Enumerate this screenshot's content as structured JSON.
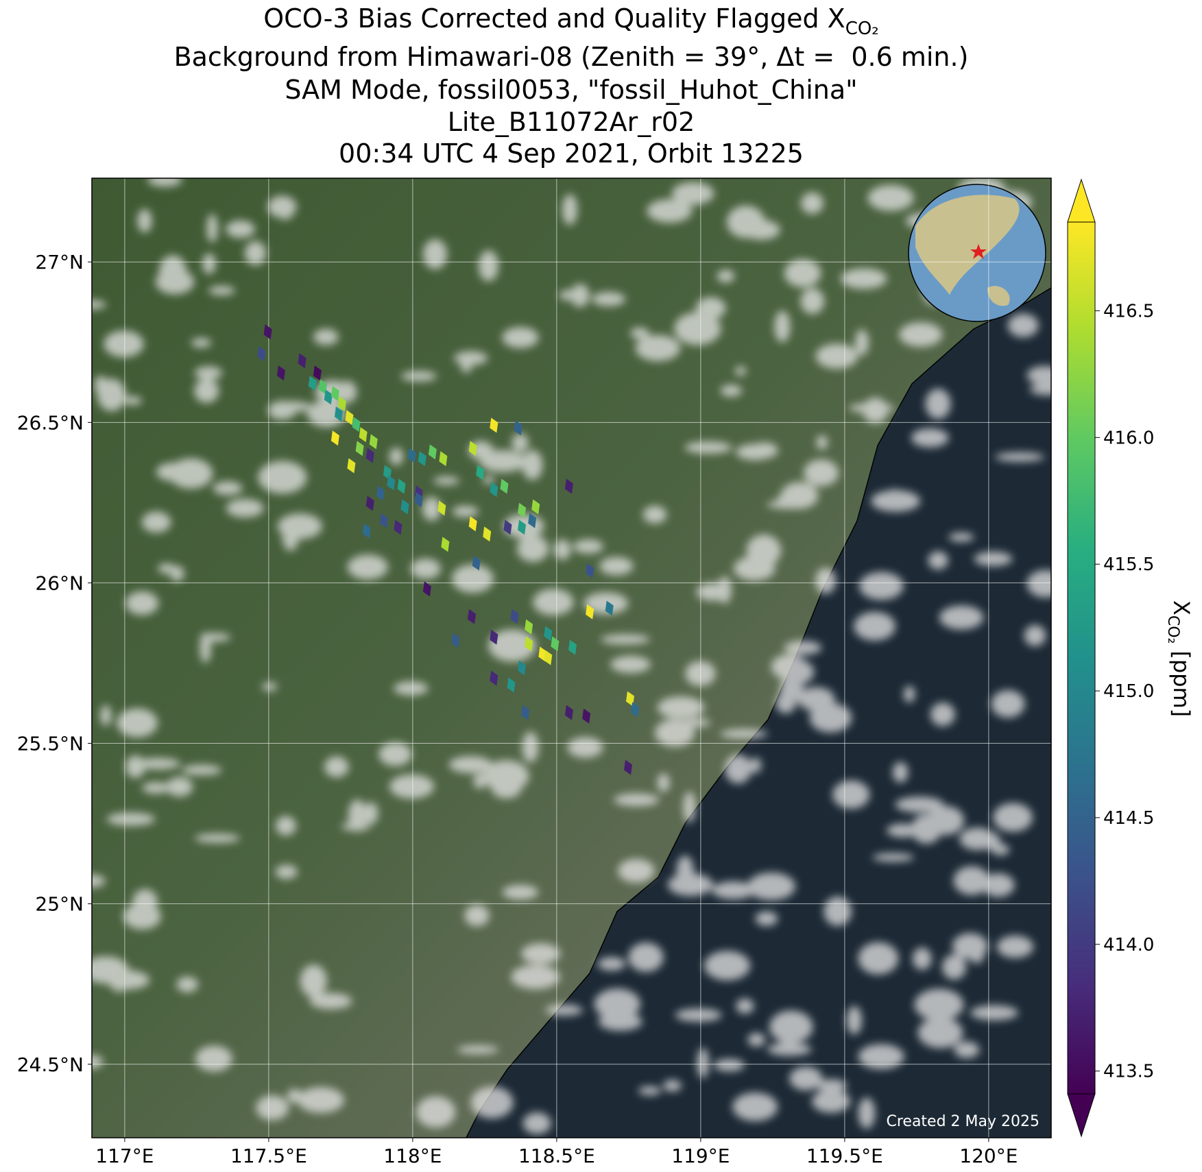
{
  "chart_data": {
    "type": "scatter",
    "title": [
      "OCO-3 Bias Corrected and Quality Flagged X",
      "Background from Himawari-08 (Zenith = 39°, Δt =  0.6 min.)",
      "SAM Mode, fossil0053, \"fossil_Huhot_China\"",
      "Lite_B11072Ar_r02",
      "00:34 UTC 4 Sep 2021, Orbit 13225"
    ],
    "title_subscript": "CO₂",
    "xlim": [
      116.886,
      120.217
    ],
    "ylim": [
      24.271,
      27.261
    ],
    "xticks": [
      {
        "value": 117,
        "label": "117°E"
      },
      {
        "value": 117.5,
        "label": "117.5°E"
      },
      {
        "value": 118,
        "label": "118°E"
      },
      {
        "value": 118.5,
        "label": "118.5°E"
      },
      {
        "value": 119,
        "label": "119°E"
      },
      {
        "value": 119.5,
        "label": "119.5°E"
      },
      {
        "value": 120,
        "label": "120°E"
      }
    ],
    "yticks": [
      {
        "value": 24.5,
        "label": "24.5°N"
      },
      {
        "value": 25,
        "label": "25°N"
      },
      {
        "value": 25.5,
        "label": "25.5°N"
      },
      {
        "value": 26,
        "label": "26°N"
      },
      {
        "value": 26.5,
        "label": "26.5°N"
      },
      {
        "value": 27,
        "label": "27°N"
      }
    ],
    "grid": true,
    "cmap": "viridis",
    "clim": [
      413.41,
      416.85
    ],
    "cticks": [
      413.5,
      {
        "value": 414,
        "label": "414.0"
      },
      414.5,
      {
        "value": 415,
        "label": "415.0"
      },
      415.5,
      {
        "value": 416,
        "label": "416.0"
      },
      416.5
    ],
    "colorbar_label": {
      "symbol": "X",
      "subscript": "CO₂",
      "unit": "[ppm]"
    },
    "annotation": "Created 2 May 2025",
    "x": [
      117.497,
      117.475,
      117.616,
      117.543,
      117.669,
      117.652,
      117.688,
      117.707,
      117.731,
      117.755,
      117.743,
      117.78,
      117.804,
      117.828,
      117.864,
      117.731,
      117.816,
      117.852,
      117.787,
      117.912,
      117.997,
      118.033,
      118.069,
      118.106,
      117.925,
      117.888,
      117.961,
      117.852,
      117.973,
      118.021,
      117.9,
      117.949,
      117.84,
      118.021,
      118.282,
      118.366,
      118.209,
      118.234,
      118.282,
      118.318,
      118.379,
      118.427,
      118.209,
      118.258,
      118.33,
      118.379,
      118.415,
      118.101,
      118.113,
      118.543,
      118.221,
      118.615,
      118.05,
      118.205,
      118.683,
      118.149,
      118.282,
      118.354,
      118.403,
      118.47,
      118.403,
      118.451,
      118.494,
      118.555,
      118.615,
      118.47,
      118.282,
      118.379,
      118.342,
      118.391,
      118.543,
      118.603,
      118.755,
      118.772,
      118.748
    ],
    "y": [
      26.782,
      26.714,
      26.692,
      26.654,
      26.654,
      26.622,
      26.611,
      26.579,
      26.59,
      26.558,
      26.526,
      26.515,
      26.494,
      26.462,
      26.44,
      26.451,
      26.419,
      26.397,
      26.365,
      26.344,
      26.397,
      26.387,
      26.408,
      26.387,
      26.312,
      26.28,
      26.301,
      26.248,
      26.237,
      26.28,
      26.194,
      26.173,
      26.162,
      26.259,
      26.491,
      26.483,
      26.419,
      26.344,
      26.291,
      26.301,
      26.226,
      26.237,
      26.184,
      26.152,
      26.173,
      26.173,
      26.194,
      26.233,
      26.12,
      26.301,
      26.062,
      26.038,
      25.981,
      25.895,
      25.921,
      25.821,
      25.831,
      25.895,
      25.863,
      25.842,
      25.81,
      25.778,
      25.81,
      25.799,
      25.91,
      25.767,
      25.703,
      25.735,
      25.682,
      25.596,
      25.596,
      25.585,
      25.639,
      25.605,
      25.425
    ],
    "values": [
      413.6,
      414.2,
      413.7,
      413.6,
      413.5,
      415.3,
      415.9,
      415.2,
      416.0,
      416.4,
      415.1,
      416.7,
      415.8,
      416.5,
      416.3,
      416.8,
      416.2,
      413.8,
      416.7,
      415.3,
      414.6,
      415.2,
      416.0,
      416.4,
      415.0,
      414.5,
      415.4,
      413.7,
      415.1,
      413.9,
      414.3,
      413.8,
      414.6,
      414.4,
      416.8,
      414.5,
      416.5,
      415.5,
      415.2,
      416.0,
      416.1,
      416.3,
      416.8,
      416.7,
      414.0,
      415.3,
      414.6,
      416.6,
      416.4,
      413.7,
      414.5,
      414.3,
      413.6,
      413.7,
      414.8,
      414.4,
      413.8,
      414.2,
      416.3,
      415.2,
      416.5,
      416.8,
      416.0,
      415.4,
      416.8,
      416.7,
      413.8,
      415.0,
      415.2,
      414.4,
      413.7,
      413.6,
      416.7,
      414.6,
      413.7
    ]
  }
}
